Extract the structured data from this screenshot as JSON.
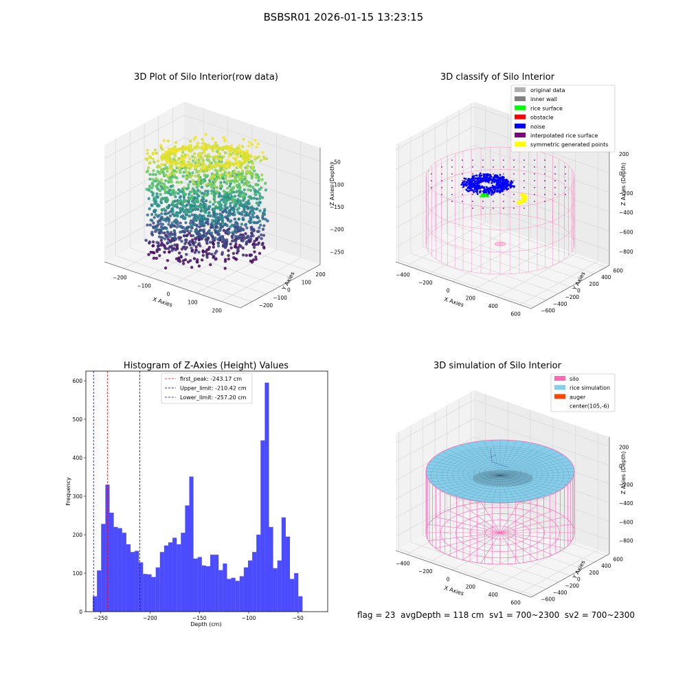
{
  "page": {
    "suptitle": "BSBSR01 2026-01-15 13:23:15",
    "footer": {
      "flag": "flag = 23",
      "avg_depth": "avgDepth = 118 cm",
      "sv1": "sv1 = 700~2300",
      "sv2": "sv2 = 700~2300"
    }
  },
  "chart_data": [
    {
      "type": "scatter",
      "projection": "3d",
      "title": "3D Plot of Silo Interior(row data)",
      "xlabel": "X Axies",
      "ylabel": "Y Axies",
      "zlabel": "Z Axies (Depth)",
      "xlim": [
        -280,
        280
      ],
      "ylim": [
        -280,
        280
      ],
      "zlim": [
        -280,
        -20
      ],
      "x_ticks": [
        -200,
        -100,
        0,
        100,
        200
      ],
      "y_ticks": [
        -200,
        -100,
        0,
        100,
        200
      ],
      "z_ticks": [
        -250,
        -200,
        -150,
        -100,
        -50
      ],
      "colormap": "viridis",
      "colormap_colors": [
        "#440154",
        "#3b528b",
        "#21918c",
        "#5ec962",
        "#fde725"
      ],
      "grid": true
    },
    {
      "type": "scatter",
      "projection": "3d",
      "title": "3D classify of Silo Interior",
      "xlabel": "X Axies",
      "ylabel": "Y Axies",
      "zlabel": "Z Axies (Depth)",
      "xlim": [
        -500,
        700
      ],
      "ylim": [
        -650,
        650
      ],
      "zlim": [
        -950,
        250
      ],
      "x_ticks": [
        -400,
        -200,
        0,
        200,
        400,
        600
      ],
      "y_ticks": [
        -600,
        -400,
        -200,
        0,
        200,
        400,
        600
      ],
      "z_ticks": [
        -800,
        -600,
        -400,
        -200,
        0,
        200
      ],
      "legend_position": "upper-right",
      "legend": [
        {
          "label": "original data",
          "color": "#b0b0b0"
        },
        {
          "label": "inner wall",
          "color": "#808080"
        },
        {
          "label": "rice surface",
          "color": "#00ff00"
        },
        {
          "label": "obstacle",
          "color": "#ff0000"
        },
        {
          "label": "noise",
          "color": "#0000ff"
        },
        {
          "label": "interpolated rice surface",
          "color": "#800080"
        },
        {
          "label": "symmetric generated points",
          "color": "#ffff00"
        }
      ],
      "silo_color": "#ff69b4",
      "grid": true
    },
    {
      "type": "bar",
      "title": "Histogram of Z-Axies (Height) Values",
      "xlabel": "Depth (cm)",
      "ylabel": "Frequency",
      "xlim": [
        -265,
        -20
      ],
      "ylim": [
        0,
        625
      ],
      "x_ticks": [
        -250,
        -200,
        -150,
        -100,
        -50
      ],
      "y_ticks": [
        0,
        100,
        200,
        300,
        400,
        500,
        600
      ],
      "bin_width": 4.25,
      "bin_start": -258,
      "bar_color": "#0000ff",
      "bar_alpha": 0.7,
      "values": [
        40,
        107,
        228,
        330,
        257,
        220,
        217,
        205,
        175,
        155,
        158,
        128,
        98,
        97,
        90,
        115,
        155,
        172,
        180,
        192,
        175,
        205,
        276,
        351,
        138,
        142,
        120,
        118,
        148,
        148,
        108,
        125,
        85,
        88,
        80,
        92,
        115,
        133,
        155,
        200,
        445,
        595,
        220,
        113,
        133,
        245,
        195,
        85,
        100,
        40
      ],
      "vlines": [
        {
          "label": "first_peak: -243.17 cm",
          "x": -243.17,
          "color": "#ff0000"
        },
        {
          "label": "Upper_limit: -210.42 cm",
          "x": -210.42,
          "color": "#0000aa"
        },
        {
          "label": "Lower_limit: -257.20 cm",
          "x": -257.2,
          "color": "#0000aa"
        }
      ],
      "legend_position": "upper-center"
    },
    {
      "type": "area",
      "projection": "3d",
      "title": "3D simulation of Silo Interior",
      "xlabel": "X Axies",
      "ylabel": "Y Axies",
      "zlabel": "Z Axies (Depth)",
      "xlim": [
        -500,
        700
      ],
      "ylim": [
        -650,
        650
      ],
      "zlim": [
        -950,
        300
      ],
      "x_ticks": [
        -400,
        -200,
        0,
        200,
        400,
        600
      ],
      "y_ticks": [
        -600,
        -400,
        -200,
        0,
        200,
        400,
        600
      ],
      "z_ticks": [
        -800,
        -600,
        -400,
        -200,
        0,
        200
      ],
      "legend_position": "upper-right",
      "legend": [
        {
          "label": "silo",
          "color": "#ff69b4"
        },
        {
          "label": "rice simulation",
          "color": "#87ceeb"
        },
        {
          "label": "auger",
          "color": "#ff4500"
        },
        {
          "label": "center(105,-6)",
          "color": "#ffffff"
        }
      ],
      "grid": true
    }
  ]
}
